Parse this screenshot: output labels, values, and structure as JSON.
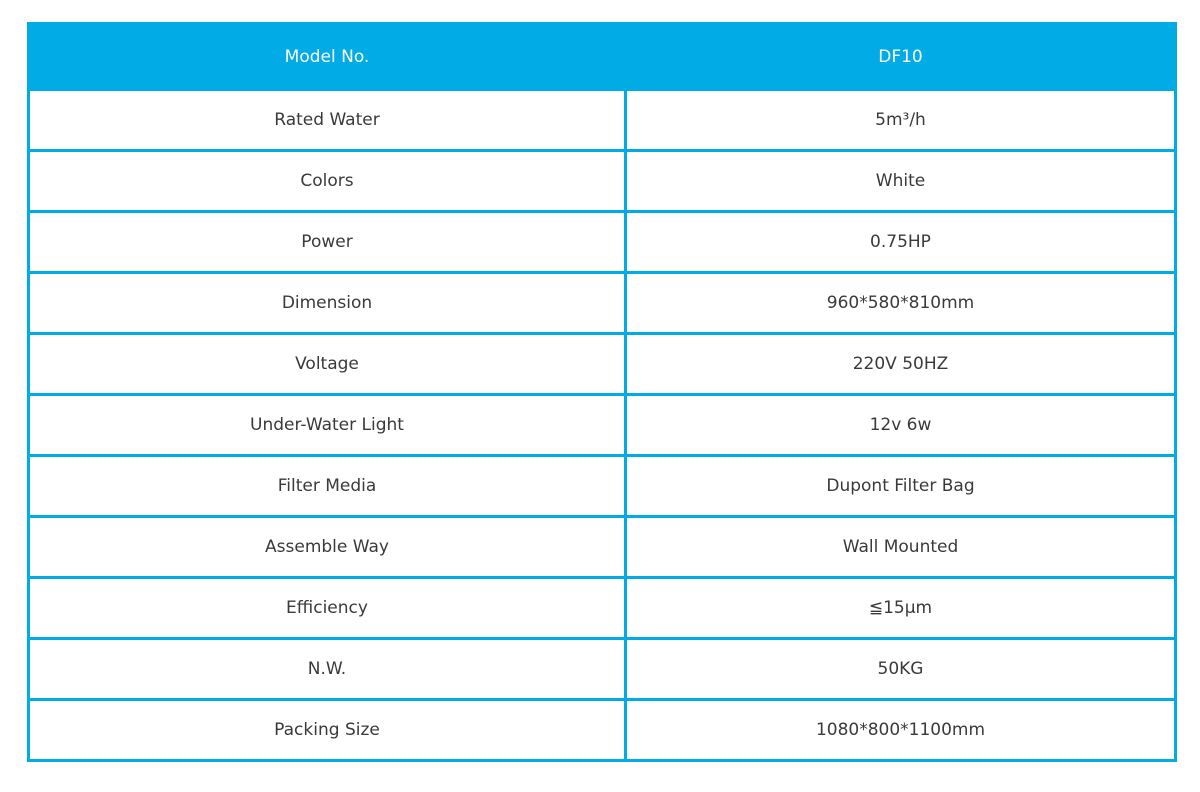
{
  "colors": {
    "accent": "#00abe6",
    "header_text": "#ffffff",
    "cell_text": "#3a3a3a"
  },
  "table": {
    "header": {
      "label": "Model No.",
      "value": "DF10"
    },
    "rows": [
      {
        "label": "Rated Water",
        "value": "5m³/h"
      },
      {
        "label": "Colors",
        "value": "White"
      },
      {
        "label": "Power",
        "value": "0.75HP"
      },
      {
        "label": "Dimension",
        "value": "960*580*810mm"
      },
      {
        "label": "Voltage",
        "value": "220V 50HZ"
      },
      {
        "label": "Under-Water Light",
        "value": "12v 6w"
      },
      {
        "label": "Filter Media",
        "value": "Dupont Filter Bag"
      },
      {
        "label": "Assemble Way",
        "value": "Wall Mounted"
      },
      {
        "label": "Efficiency",
        "value": "≦15μm"
      },
      {
        "label": "N.W.",
        "value": "50KG"
      },
      {
        "label": "Packing Size",
        "value": "1080*800*1100mm"
      }
    ]
  }
}
